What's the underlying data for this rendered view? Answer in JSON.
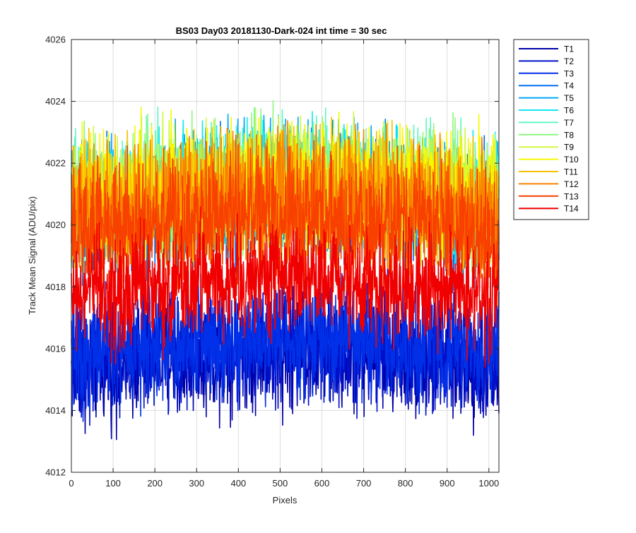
{
  "chart_data": {
    "type": "line",
    "title": "BS03 Day03 20181130-Dark-024 int time = 30 sec",
    "xlabel": "Pixels",
    "ylabel": "Track Mean Signal (ADU/pix)",
    "xlim": [
      0,
      1024
    ],
    "ylim": [
      4012,
      4026
    ],
    "xticks": [
      0,
      100,
      200,
      300,
      400,
      500,
      600,
      700,
      800,
      900,
      1000
    ],
    "yticks": [
      4012,
      4014,
      4016,
      4018,
      4020,
      4022,
      4024,
      4026
    ],
    "grid": true,
    "legend_position": "outside-top-right",
    "series": [
      {
        "name": "T1",
        "color": "#0000a8",
        "mean": 4015.6,
        "noise": 0.9
      },
      {
        "name": "T2",
        "color": "#0010c8",
        "mean": 4015.9,
        "noise": 0.9
      },
      {
        "name": "T3",
        "color": "#0030e8",
        "mean": 4016.1,
        "noise": 0.9
      },
      {
        "name": "T4",
        "color": "#0070f0",
        "mean": 4020.6,
        "noise": 1.0
      },
      {
        "name": "T5",
        "color": "#00a8f8",
        "mean": 4020.8,
        "noise": 1.0
      },
      {
        "name": "T6",
        "color": "#10e8f0",
        "mean": 4020.9,
        "noise": 1.0
      },
      {
        "name": "T7",
        "color": "#60f8c0",
        "mean": 4021.0,
        "noise": 1.0
      },
      {
        "name": "T8",
        "color": "#90f880",
        "mean": 4021.0,
        "noise": 1.0
      },
      {
        "name": "T9",
        "color": "#d0f840",
        "mean": 4021.0,
        "noise": 1.0
      },
      {
        "name": "T10",
        "color": "#f8f800",
        "mean": 4021.0,
        "noise": 1.0
      },
      {
        "name": "T11",
        "color": "#f8c000",
        "mean": 4020.8,
        "noise": 1.0
      },
      {
        "name": "T12",
        "color": "#f88000",
        "mean": 4020.5,
        "noise": 1.0
      },
      {
        "name": "T13",
        "color": "#f84000",
        "mean": 4020.0,
        "noise": 1.0
      },
      {
        "name": "T14",
        "color": "#f00000",
        "mean": 4018.0,
        "noise": 0.9
      }
    ]
  }
}
